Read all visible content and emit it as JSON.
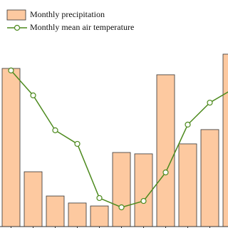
{
  "chart_data": {
    "type": "bar-line",
    "categories": [
      null,
      null,
      null,
      null,
      null,
      null,
      null,
      null,
      null,
      null,
      null
    ],
    "series": [
      {
        "name": "Monthly precipitation",
        "type": "bar",
        "color": "#fdc9a0",
        "values": [
          69.8,
          24.2,
          13.5,
          10.4,
          9.1,
          32.7,
          32.1,
          67.0,
          36.5,
          42.8,
          76.1
        ]
      },
      {
        "name": "Monthly mean air  temperature",
        "type": "line",
        "color": "#4d8a1e",
        "axis": "y2",
        "values": [
          68.9,
          57.9,
          42.5,
          36.5,
          12.6,
          8.5,
          11.3,
          23.9,
          45.0,
          54.7,
          60.4
        ]
      }
    ],
    "ylim": [
      0,
      100
    ],
    "y2lim": [
      0,
      100
    ]
  }
}
